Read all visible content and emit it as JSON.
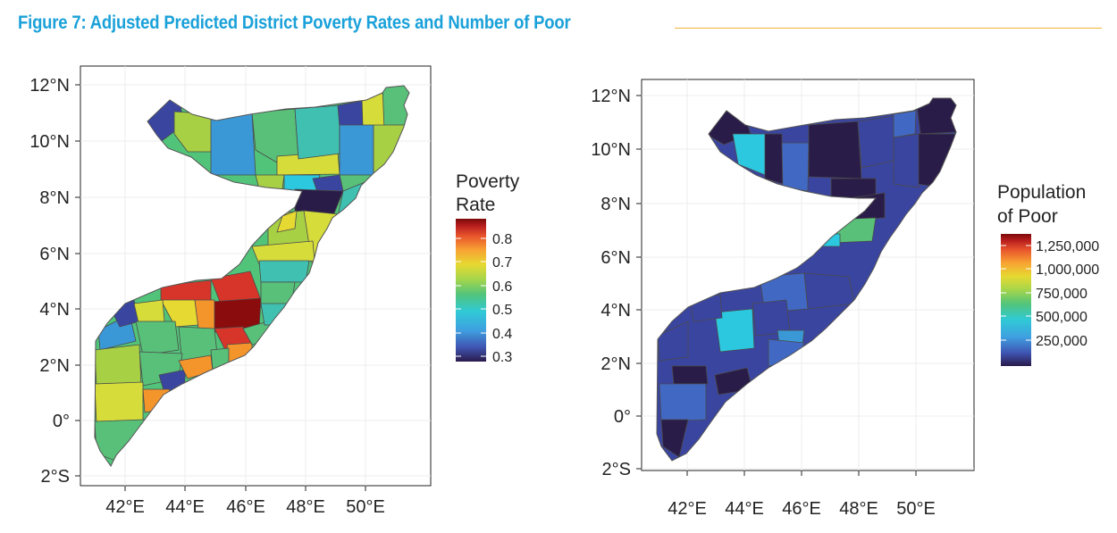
{
  "figure": {
    "title": "Figure 7: Adjusted Predicted District Poverty Rates and Number of Poor",
    "rule_color": "#f2b233",
    "title_color": "#1aa1d9"
  },
  "map_left": {
    "subject": "Adjusted predicted district poverty rate",
    "lat_ticks": [
      "12°N",
      "10°N",
      "8°N",
      "6°N",
      "4°N",
      "2°N",
      "0°",
      "2°S"
    ],
    "lon_ticks": [
      "42°E",
      "44°E",
      "46°E",
      "48°E",
      "50°E"
    ],
    "legend": {
      "title_line1": "Poverty",
      "title_line2": "Rate",
      "ticks": [
        "0.8",
        "0.7",
        "0.6",
        "0.5",
        "0.4",
        "0.3"
      ],
      "colormap": [
        "#2a1a4a",
        "#3f55b2",
        "#3fa0e0",
        "#2fc9d6",
        "#52c47a",
        "#a8d64a",
        "#e6d932",
        "#f8a333",
        "#e8542c",
        "#b81e1e",
        "#7a0a0a"
      ]
    }
  },
  "map_right": {
    "subject": "Number of poor by district",
    "lat_ticks": [
      "12°N",
      "10°N",
      "8°N",
      "6°N",
      "4°N",
      "2°N",
      "0°",
      "2°S"
    ],
    "lon_ticks": [
      "42°E",
      "44°E",
      "46°E",
      "48°E",
      "50°E"
    ],
    "legend": {
      "title_line1": "Population",
      "title_line2": "of Poor",
      "ticks": [
        "1,250,000",
        "1,000,000",
        "750,000",
        "500,000",
        "250,000"
      ],
      "colormap": [
        "#2a1a4a",
        "#3f55b2",
        "#3fa0e0",
        "#2fc9d6",
        "#52c47a",
        "#a8d64a",
        "#e6d932",
        "#f8a333",
        "#e8542c",
        "#b81e1e",
        "#7a0a0a"
      ]
    }
  },
  "region_colors": {
    "dark_navy": "#2a1c48",
    "indigo": "#3a45a0",
    "blue": "#4169c4",
    "sky": "#3b98d6",
    "cyan": "#2cc8e0",
    "teal": "#40c0b0",
    "green": "#58c078",
    "lime": "#a8d045",
    "yellow": "#d6dc3a",
    "orange": "#f4952c",
    "red": "#d8352a",
    "dark_red": "#8a0c0c"
  }
}
